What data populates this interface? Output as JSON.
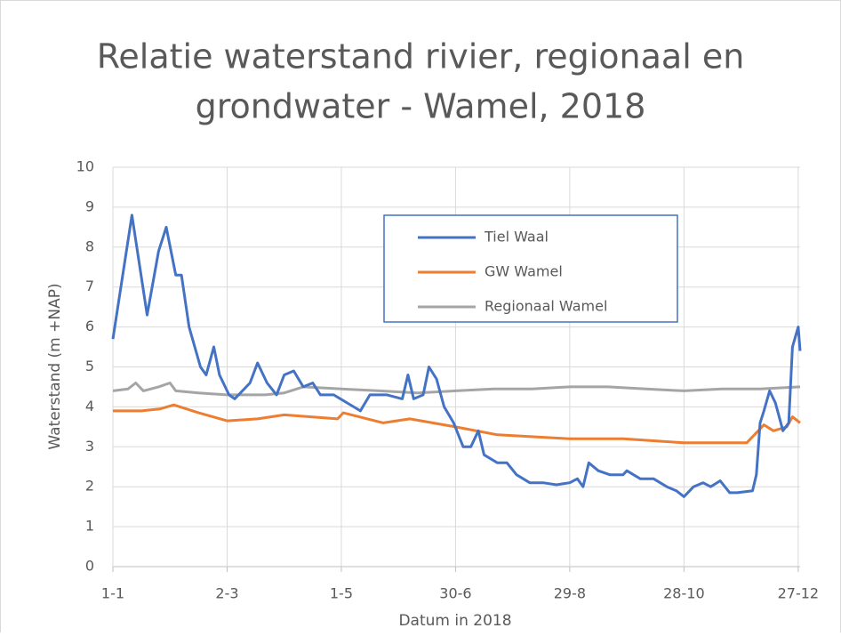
{
  "chart_data": {
    "type": "line",
    "title": [
      "Relatie waterstand rivier, regionaal en",
      "grondwater - Wamel, 2018"
    ],
    "x_label": "Datum in 2018",
    "y_label": "Waterstand (m +NAP)",
    "xlim": [
      0,
      361
    ],
    "xticks": [
      {
        "value": 0,
        "label": "1-1"
      },
      {
        "value": 60,
        "label": "2-3"
      },
      {
        "value": 120,
        "label": "1-5"
      },
      {
        "value": 180,
        "label": "30-6"
      },
      {
        "value": 240,
        "label": "29-8"
      },
      {
        "value": 300,
        "label": "28-10"
      },
      {
        "value": 360,
        "label": "27-12"
      }
    ],
    "ylim": [
      0,
      10
    ],
    "yticks": [
      0,
      1,
      2,
      3,
      4,
      5,
      6,
      7,
      8,
      9,
      10
    ],
    "grid": true,
    "legend": "top-center",
    "series": [
      {
        "name": "Tiel Waal",
        "color": "#4472c4",
        "x": [
          0,
          10,
          18,
          24,
          28,
          33,
          36,
          40,
          46,
          49,
          53,
          56,
          61,
          64,
          72,
          76,
          81,
          86,
          90,
          95,
          100,
          105,
          109,
          116,
          123,
          130,
          135,
          144,
          152,
          155,
          158,
          163,
          166,
          170,
          174,
          179,
          184,
          188,
          192,
          195,
          202,
          207,
          212,
          219,
          226,
          233,
          240,
          244,
          247,
          250,
          255,
          261,
          268,
          270,
          277,
          284,
          291,
          296,
          300,
          305,
          310,
          314,
          319,
          324,
          328,
          336,
          338,
          340,
          342,
          345,
          348,
          352,
          355,
          357,
          360,
          361
        ],
        "values": [
          5.7,
          8.8,
          6.3,
          7.9,
          8.5,
          7.3,
          7.3,
          6,
          5,
          4.8,
          5.5,
          4.8,
          4.3,
          4.2,
          4.6,
          5.1,
          4.6,
          4.3,
          4.8,
          4.9,
          4.5,
          4.6,
          4.3,
          4.3,
          4.1,
          3.9,
          4.3,
          4.3,
          4.2,
          4.8,
          4.2,
          4.3,
          5,
          4.7,
          4,
          3.6,
          3,
          3,
          3.4,
          2.8,
          2.6,
          2.6,
          2.3,
          2.1,
          2.1,
          2.05,
          2.1,
          2.2,
          2,
          2.6,
          2.4,
          2.3,
          2.3,
          2.4,
          2.2,
          2.2,
          2,
          1.9,
          1.75,
          2,
          2.1,
          2,
          2.15,
          1.85,
          1.85,
          1.9,
          2.3,
          3.6,
          3.9,
          4.4,
          4.1,
          3.4,
          3.6,
          5.5,
          6,
          5.4
        ]
      },
      {
        "name": "GW Wamel",
        "color": "#ed7d31",
        "x": [
          0,
          15,
          25,
          32,
          45,
          60,
          76,
          90,
          118,
          121,
          142,
          156,
          180,
          202,
          240,
          268,
          300,
          333,
          337,
          342,
          347,
          354,
          357,
          361
        ],
        "values": [
          3.9,
          3.9,
          3.95,
          4.05,
          3.85,
          3.65,
          3.7,
          3.8,
          3.7,
          3.85,
          3.6,
          3.7,
          3.5,
          3.3,
          3.2,
          3.2,
          3.1,
          3.1,
          3.3,
          3.55,
          3.4,
          3.5,
          3.75,
          3.6
        ]
      },
      {
        "name": "Regionaal Wamel",
        "color": "#a5a5a5",
        "x": [
          0,
          8,
          12,
          16,
          24,
          30,
          33,
          45,
          60,
          80,
          90,
          100,
          120,
          140,
          160,
          180,
          200,
          220,
          240,
          260,
          280,
          300,
          320,
          340,
          361
        ],
        "values": [
          4.4,
          4.45,
          4.6,
          4.4,
          4.5,
          4.6,
          4.4,
          4.35,
          4.3,
          4.3,
          4.35,
          4.5,
          4.45,
          4.4,
          4.35,
          4.4,
          4.45,
          4.45,
          4.5,
          4.5,
          4.45,
          4.4,
          4.45,
          4.45,
          4.5
        ]
      }
    ]
  }
}
